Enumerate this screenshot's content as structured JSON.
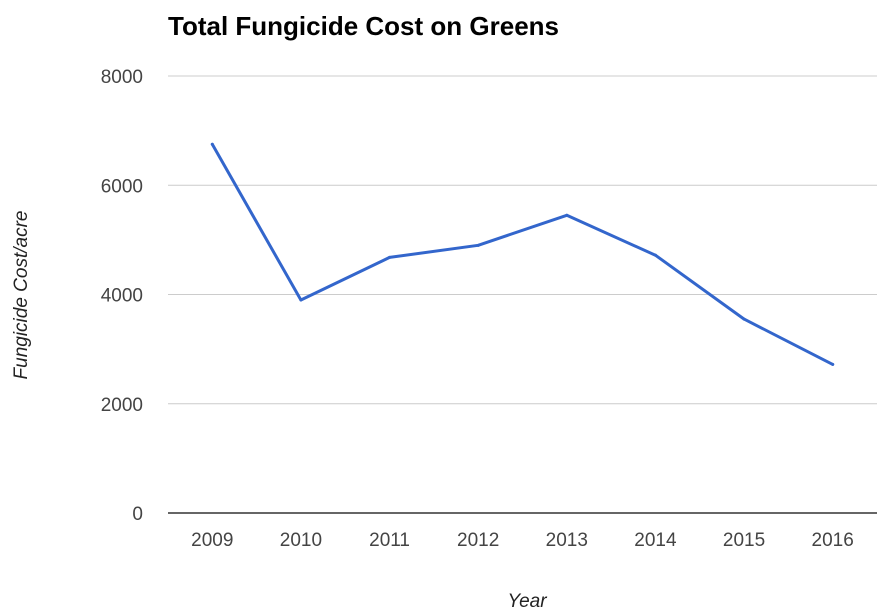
{
  "chart_data": {
    "type": "line",
    "title": "Total Fungicide Cost on Greens",
    "xlabel": "Year",
    "ylabel": "Fungicide Cost/acre",
    "categories": [
      "2009",
      "2010",
      "2011",
      "2012",
      "2013",
      "2014",
      "2015",
      "2016"
    ],
    "series": [
      {
        "values": [
          6750,
          3900,
          4680,
          4900,
          5450,
          4720,
          3550,
          2720
        ],
        "color": "#3366cc"
      }
    ],
    "ylim": [
      0,
      8000
    ],
    "yticks": [
      "0",
      "2000",
      "4000",
      "6000",
      "8000"
    ],
    "grid": true,
    "legend": "none"
  }
}
